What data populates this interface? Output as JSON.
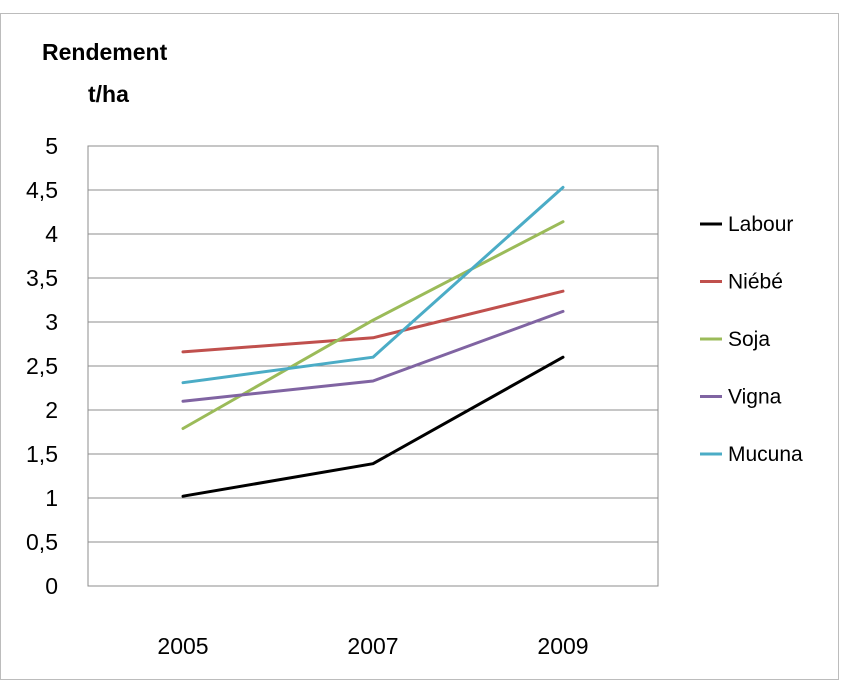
{
  "chart_data": {
    "type": "line",
    "title": "",
    "xlabel": "",
    "ylabel": [
      "Rendement",
      "t/ha"
    ],
    "categories": [
      "2005",
      "2007",
      "2009"
    ],
    "ylim": [
      0,
      5
    ],
    "yticks": [
      "0",
      "0,5",
      "1",
      "1,5",
      "2",
      "2,5",
      "3",
      "3,5",
      "4",
      "4,5",
      "5"
    ],
    "grid": true,
    "legend_position": "right",
    "series": [
      {
        "name": "Labour",
        "color": "#000000",
        "values": [
          1.02,
          1.39,
          2.6
        ]
      },
      {
        "name": "Niébé",
        "color": "#c0504d",
        "values": [
          2.66,
          2.82,
          3.35
        ]
      },
      {
        "name": "Soja",
        "color": "#9bbb59",
        "values": [
          1.79,
          3.02,
          4.14
        ]
      },
      {
        "name": "Vigna",
        "color": "#8064a2",
        "values": [
          2.1,
          2.33,
          3.12
        ]
      },
      {
        "name": "Mucuna",
        "color": "#4bacc6",
        "values": [
          2.31,
          2.6,
          4.53
        ]
      }
    ]
  }
}
